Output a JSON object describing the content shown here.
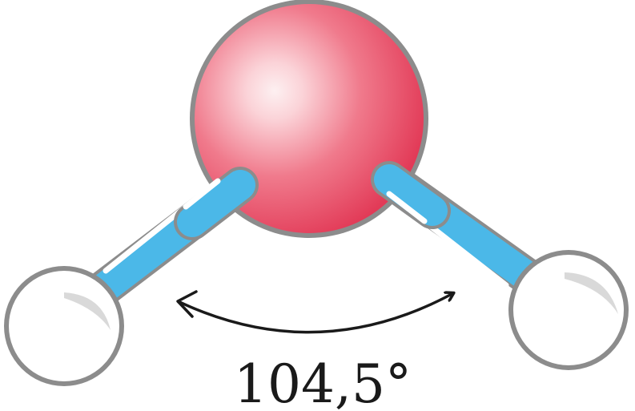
{
  "diagram": {
    "bond_angle_label": "104,5°",
    "colors": {
      "oxygen_center": "#fde8ea",
      "oxygen_mid": "#f07a8c",
      "oxygen_edge": "#e23a57",
      "hydrogen_fill": "#ffffff",
      "hydrogen_shade": "#d9d9d9",
      "bond_fill": "#4bb8e8",
      "bond_highlight": "#ffffff",
      "outline": "#8c8c8c",
      "arrow": "#1a1a1a"
    }
  }
}
